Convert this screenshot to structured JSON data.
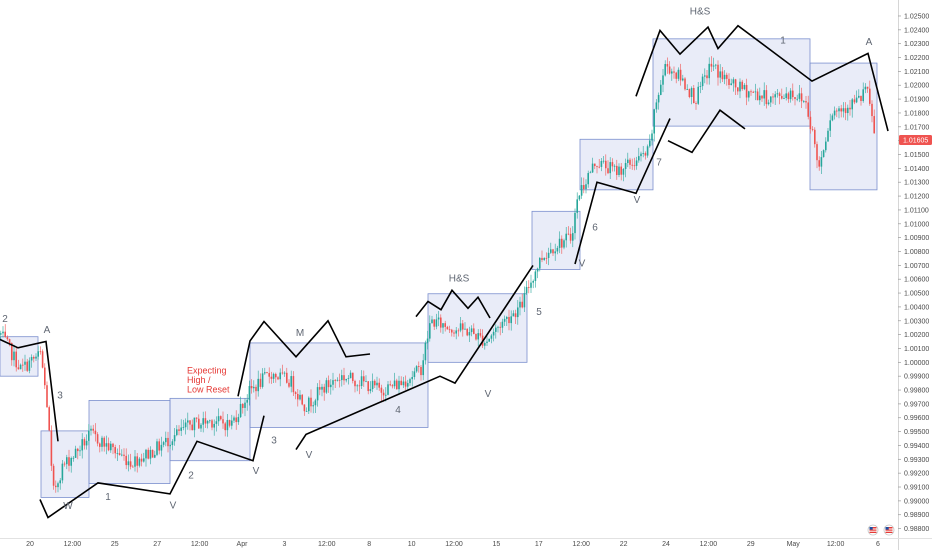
{
  "colors": {
    "up": "#26a69a",
    "down": "#ef5350",
    "box_fill": "rgba(120,138,214,0.16)",
    "box_stroke": "#7b8fce",
    "trend_line": "#000000",
    "axis_text": "#4a4a4a",
    "last_price_tag": "#ef5350",
    "note_text": "#e53935",
    "wave_label_text": "#5f6672"
  },
  "chart_data": {
    "type": "candlestick",
    "y_axis": {
      "side": "right",
      "range": [
        0.98732,
        1.02572
      ],
      "ticks": [
        "1.02500",
        "1.02400",
        "1.02300",
        "1.02200",
        "1.02100",
        "1.02000",
        "1.01900",
        "1.01800",
        "1.01700",
        "1.01600",
        "1.01500",
        "1.01400",
        "1.01300",
        "1.01200",
        "1.01100",
        "1.01000",
        "1.00900",
        "1.00800",
        "1.00700",
        "1.00600",
        "1.00500",
        "1.00400",
        "1.00300",
        "1.00200",
        "1.00100",
        "1.00000",
        "0.99900",
        "0.99800",
        "0.99700",
        "0.99600",
        "0.99500",
        "0.99400",
        "0.99300",
        "0.99200",
        "0.99100",
        "0.99000",
        "0.98900",
        "0.98800"
      ],
      "last_price": "1.01605"
    },
    "x_axis": {
      "ticks": [
        "20",
        "12:00",
        "25",
        "27",
        "12:00",
        "Apr",
        "3",
        "12:00",
        "8",
        "10",
        "12:00",
        "15",
        "17",
        "12:00",
        "22",
        "24",
        "12:00",
        "29",
        "May",
        "12:00",
        "6"
      ]
    },
    "series_path": [
      [
        0,
        1.002
      ],
      [
        20,
        0.9995
      ],
      [
        40,
        1.0006
      ],
      [
        47,
        0.9965
      ],
      [
        52,
        0.9905
      ],
      [
        62,
        0.9925
      ],
      [
        75,
        0.9935
      ],
      [
        90,
        0.9948
      ],
      [
        110,
        0.9938
      ],
      [
        130,
        0.9928
      ],
      [
        150,
        0.9935
      ],
      [
        170,
        0.9945
      ],
      [
        190,
        0.9955
      ],
      [
        210,
        0.9958
      ],
      [
        230,
        0.9955
      ],
      [
        250,
        0.998
      ],
      [
        270,
        0.9992
      ],
      [
        290,
        0.9986
      ],
      [
        305,
        0.9968
      ],
      [
        320,
        0.998
      ],
      [
        340,
        0.999
      ],
      [
        360,
        0.9986
      ],
      [
        380,
        0.998
      ],
      [
        400,
        0.9985
      ],
      [
        420,
        0.9995
      ],
      [
        430,
        1.003
      ],
      [
        450,
        1.0025
      ],
      [
        470,
        1.0022
      ],
      [
        485,
        1.0015
      ],
      [
        500,
        1.0028
      ],
      [
        520,
        1.004
      ],
      [
        528,
        1.0055
      ],
      [
        540,
        1.0075
      ],
      [
        555,
        1.0085
      ],
      [
        570,
        1.009
      ],
      [
        578,
        1.0122
      ],
      [
        595,
        1.0145
      ],
      [
        615,
        1.0138
      ],
      [
        635,
        1.0145
      ],
      [
        648,
        1.0152
      ],
      [
        656,
        1.019
      ],
      [
        665,
        1.0215
      ],
      [
        680,
        1.0205
      ],
      [
        695,
        1.019
      ],
      [
        710,
        1.0215
      ],
      [
        730,
        1.02
      ],
      [
        750,
        1.0195
      ],
      [
        770,
        1.019
      ],
      [
        790,
        1.0195
      ],
      [
        805,
        1.0188
      ],
      [
        812,
        1.0165
      ],
      [
        818,
        1.014
      ],
      [
        830,
        1.018
      ],
      [
        845,
        1.0185
      ],
      [
        860,
        1.019
      ],
      [
        865,
        1.02
      ],
      [
        875,
        1.016
      ]
    ],
    "ranges": [
      {
        "x": [
          0,
          38
        ],
        "y": [
          0.999,
          1.00185
        ]
      },
      {
        "x": [
          41,
          89
        ],
        "y": [
          0.99025,
          0.99505
        ]
      },
      {
        "x": [
          89,
          170
        ],
        "y": [
          0.99125,
          0.99725
        ]
      },
      {
        "x": [
          170,
          250
        ],
        "y": [
          0.9929,
          0.9974
        ]
      },
      {
        "x": [
          250,
          428
        ],
        "y": [
          0.9953,
          1.0014
        ]
      },
      {
        "x": [
          428,
          527
        ],
        "y": [
          1.0,
          1.00495
        ]
      },
      {
        "x": [
          532,
          580
        ],
        "y": [
          1.0067,
          1.0109
        ]
      },
      {
        "x": [
          580,
          653
        ],
        "y": [
          1.01245,
          1.0161
        ]
      },
      {
        "x": [
          653,
          810
        ],
        "y": [
          1.01705,
          1.02335
        ]
      },
      {
        "x": [
          810,
          877
        ],
        "y": [
          1.01245,
          1.0216
        ]
      }
    ],
    "trend_lines": [
      [
        [
          0,
          1.00165
        ],
        [
          18,
          1.00105
        ],
        [
          46,
          1.0015
        ],
        [
          58,
          0.9943
        ]
      ],
      [
        [
          40,
          0.9901
        ],
        [
          48,
          0.9888
        ],
        [
          98,
          0.9913
        ],
        [
          170,
          0.9905
        ],
        [
          197,
          0.9943
        ],
        [
          253,
          0.9929
        ],
        [
          264,
          0.99615
        ]
      ],
      [
        [
          238,
          0.99755
        ],
        [
          250,
          1.00155
        ],
        [
          264,
          1.00295
        ],
        [
          296,
          1.0004
        ],
        [
          328,
          1.003
        ],
        [
          346,
          1.0004
        ],
        [
          370,
          1.0006
        ]
      ],
      [
        [
          296,
          0.9937
        ],
        [
          306,
          0.9948
        ],
        [
          440,
          0.999
        ],
        [
          455,
          0.9985
        ],
        [
          533,
          1.007
        ]
      ],
      [
        [
          416,
          1.0033
        ],
        [
          428,
          1.0044
        ],
        [
          441,
          1.0038
        ],
        [
          452,
          1.0052
        ],
        [
          468,
          1.0039
        ],
        [
          478,
          1.0047
        ],
        [
          490,
          1.0032
        ]
      ],
      [
        [
          575,
          1.0071
        ],
        [
          597,
          1.013
        ],
        [
          636,
          1.0122
        ],
        [
          658,
          1.0157
        ],
        [
          670,
          1.0176
        ]
      ],
      [
        [
          636,
          1.0192
        ],
        [
          660,
          1.02395
        ],
        [
          680,
          1.02225
        ],
        [
          708,
          1.0242
        ],
        [
          718,
          1.02265
        ],
        [
          738,
          1.0243
        ],
        [
          812,
          1.0203
        ],
        [
          868,
          1.0223
        ],
        [
          888,
          1.0167
        ]
      ],
      [
        [
          668,
          1.016
        ],
        [
          692,
          1.01515
        ],
        [
          720,
          1.0182
        ],
        [
          745,
          1.01685
        ]
      ]
    ],
    "wave_labels": [
      {
        "text": "2",
        "x": 5,
        "y": 1.0029
      },
      {
        "text": "A",
        "x": 47,
        "y": 1.0021
      },
      {
        "text": "3",
        "x": 60,
        "y": 0.9974
      },
      {
        "text": "W",
        "x": 68,
        "y": 0.9894
      },
      {
        "text": "1",
        "x": 108,
        "y": 0.99005
      },
      {
        "text": "V",
        "x": 173,
        "y": 0.98945
      },
      {
        "text": "2",
        "x": 191,
        "y": 0.9916
      },
      {
        "text": "V",
        "x": 256,
        "y": 0.99195
      },
      {
        "text": "3",
        "x": 274,
        "y": 0.99415
      },
      {
        "text": "V",
        "x": 309,
        "y": 0.9931
      },
      {
        "text": "M",
        "x": 300,
        "y": 1.0019
      },
      {
        "text": "4",
        "x": 398,
        "y": 0.99635
      },
      {
        "text": "H&S",
        "x": 459,
        "y": 1.00585
      },
      {
        "text": "V",
        "x": 488,
        "y": 0.9975
      },
      {
        "text": "5",
        "x": 539,
        "y": 1.0034
      },
      {
        "text": "V",
        "x": 582,
        "y": 1.0069
      },
      {
        "text": "6",
        "x": 595,
        "y": 1.0095
      },
      {
        "text": "7",
        "x": 659,
        "y": 1.0142
      },
      {
        "text": "V",
        "x": 637,
        "y": 1.0115
      },
      {
        "text": "H&S",
        "x": 700,
        "y": 1.0251
      },
      {
        "text": "1",
        "x": 783,
        "y": 1.023
      },
      {
        "text": "A",
        "x": 869,
        "y": 1.0229
      }
    ],
    "annotation": {
      "lines": [
        "Expecting",
        "High /",
        "Low Reset"
      ],
      "x": 187,
      "y": 0.9992
    }
  }
}
